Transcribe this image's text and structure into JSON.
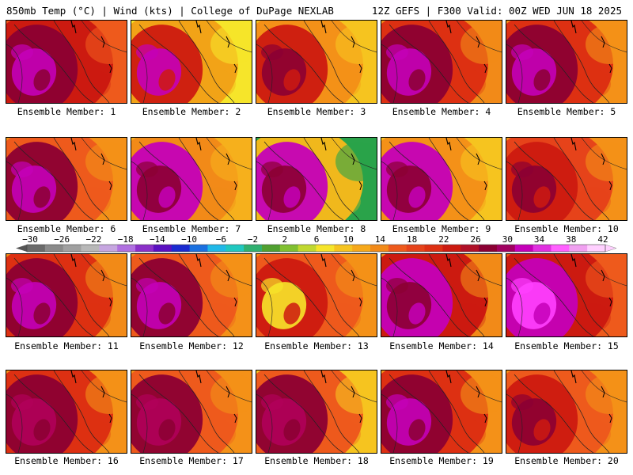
{
  "header": {
    "left": "850mb Temp (°C) | Wind (kts) | College of DuPage NEXLAB",
    "right": "12Z GEFS | F300 Valid: 00Z WED JUN 18 2025"
  },
  "members": [
    {
      "label": "Ensemble Member: 1",
      "base": "#cc1a10",
      "warm": "#8b0033",
      "hot": "#c400b8",
      "cool": "#ee5a1c"
    },
    {
      "label": "Ensemble Member: 2",
      "base": "#f2a317",
      "warm": "#cc1a10",
      "hot": "#c400b8",
      "cool": "#f6e52a"
    },
    {
      "label": "Ensemble Member: 3",
      "base": "#f49118",
      "warm": "#cc1a10",
      "hot": "#8b0033",
      "cool": "#f6c41f"
    },
    {
      "label": "Ensemble Member: 4",
      "base": "#dd3012",
      "warm": "#8b0033",
      "hot": "#c400b8",
      "cool": "#f28a18"
    },
    {
      "label": "Ensemble Member: 5",
      "base": "#dd3012",
      "warm": "#8b0033",
      "hot": "#c400b8",
      "cool": "#f49118"
    },
    {
      "label": "Ensemble Member: 6",
      "base": "#ee5a1c",
      "warm": "#8b0033",
      "hot": "#c400b8",
      "cool": "#f49118"
    },
    {
      "label": "Ensemble Member: 7",
      "base": "#f28a18",
      "warm": "#c400b8",
      "hot": "#8b0033",
      "cool": "#f6b01c"
    },
    {
      "label": "Ensemble Member: 8",
      "base": "#f0b81c",
      "warm": "#c400b8",
      "hot": "#8b0033",
      "cool": "#2aa34a"
    },
    {
      "label": "Ensemble Member: 9",
      "base": "#f49118",
      "warm": "#c400b8",
      "hot": "#8b0033",
      "cool": "#f6c41f"
    },
    {
      "label": "Ensemble Member: 10",
      "base": "#e6431a",
      "warm": "#cc1a10",
      "hot": "#8b0033",
      "cool": "#f49118"
    },
    {
      "label": "Ensemble Member: 11",
      "base": "#dd3012",
      "warm": "#8b0033",
      "hot": "#c400b8",
      "cool": "#f28a18"
    },
    {
      "label": "Ensemble Member: 12",
      "base": "#ee5a1c",
      "warm": "#8b0033",
      "hot": "#c400b8",
      "cool": "#f49118"
    },
    {
      "label": "Ensemble Member: 13",
      "base": "#ee5a1c",
      "warm": "#cc1a10",
      "hot": "#f6e52a",
      "cool": "#f49118"
    },
    {
      "label": "Ensemble Member: 14",
      "base": "#cc1a10",
      "warm": "#c400b8",
      "hot": "#8b0033",
      "cool": "#f28a18"
    },
    {
      "label": "Ensemble Member: 15",
      "base": "#cc1a10",
      "warm": "#c400b8",
      "hot": "#ff40ff",
      "cool": "#ee5a1c"
    },
    {
      "label": "Ensemble Member: 16",
      "base": "#dd3012",
      "warm": "#8b0033",
      "hot": "#b0005a",
      "cool": "#f49118"
    },
    {
      "label": "Ensemble Member: 17",
      "base": "#ee5a1c",
      "warm": "#8b0033",
      "hot": "#b0005a",
      "cool": "#f49118"
    },
    {
      "label": "Ensemble Member: 18",
      "base": "#ee5a1c",
      "warm": "#8b0033",
      "hot": "#b0005a",
      "cool": "#f6c41f"
    },
    {
      "label": "Ensemble Member: 19",
      "base": "#dd3012",
      "warm": "#8b0033",
      "hot": "#c400b8",
      "cool": "#f49118"
    },
    {
      "label": "Ensemble Member: 20",
      "base": "#ee5a1c",
      "warm": "#cc1a10",
      "hot": "#8b0033",
      "cool": "#f49118"
    }
  ],
  "colorbar": {
    "tick_labels": [
      "−30",
      "−26",
      "−22",
      "−18",
      "−14",
      "−10",
      "−6",
      "−2",
      "2",
      "6",
      "10",
      "14",
      "18",
      "22",
      "26",
      "30",
      "34",
      "38",
      "42"
    ],
    "colors": [
      "#6a6a6a",
      "#8a8a8a",
      "#a0a0a0",
      "#b8b8b8",
      "#c6a6e0",
      "#b070e0",
      "#8a30c8",
      "#5a10c0",
      "#1a2ad0",
      "#1a70e0",
      "#20b8e8",
      "#20c8c0",
      "#30b070",
      "#50a030",
      "#80c030",
      "#c0d830",
      "#f6e52a",
      "#f6c41f",
      "#f6a81a",
      "#f28a18",
      "#ee5a1c",
      "#e6431a",
      "#dd3012",
      "#cc1a10",
      "#b01028",
      "#8b0033",
      "#a00060",
      "#c400b8",
      "#e030e0",
      "#ff60ff",
      "#f0a0f0",
      "#ffd0ff"
    ]
  }
}
